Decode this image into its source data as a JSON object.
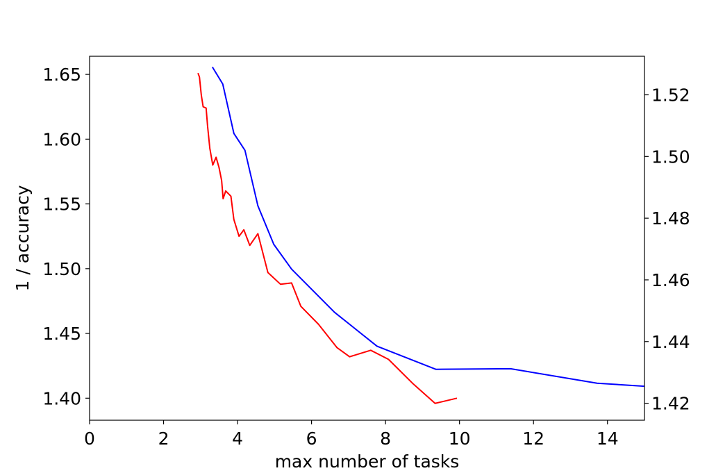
{
  "chart_data": {
    "type": "line",
    "title": "",
    "xlabel": "max number of tasks",
    "ylabel_left": "1 / accuracy",
    "ylabel_right": "",
    "xlim": [
      0,
      15
    ],
    "ylim_left": [
      1.383,
      1.664
    ],
    "ylim_right": [
      1.4145,
      1.5325
    ],
    "x_ticks": [
      0,
      2,
      4,
      6,
      8,
      10,
      12,
      14
    ],
    "y_ticks_left": [
      1.4,
      1.45,
      1.5,
      1.55,
      1.6,
      1.65
    ],
    "y_ticks_right": [
      1.42,
      1.44,
      1.46,
      1.48,
      1.5,
      1.52
    ],
    "grid": false,
    "series": [
      {
        "color": "#ff0000",
        "axis": "left",
        "x": [
          2.93,
          2.97,
          3.02,
          3.07,
          3.15,
          3.19,
          3.25,
          3.33,
          3.42,
          3.5,
          3.57,
          3.61,
          3.68,
          3.82,
          3.9,
          4.04,
          4.17,
          4.33,
          4.55,
          4.82,
          5.16,
          5.46,
          5.71,
          6.19,
          6.69,
          7.03,
          7.6,
          8.08,
          8.75,
          9.34,
          9.93
        ],
        "y": [
          1.651,
          1.648,
          1.634,
          1.625,
          1.624,
          1.61,
          1.593,
          1.58,
          1.586,
          1.578,
          1.568,
          1.554,
          1.56,
          1.556,
          1.538,
          1.525,
          1.53,
          1.518,
          1.527,
          1.497,
          1.488,
          1.489,
          1.471,
          1.457,
          1.439,
          1.432,
          1.437,
          1.43,
          1.411,
          1.396,
          1.4
        ]
      },
      {
        "color": "#0000ff",
        "axis": "right",
        "x": [
          3.32,
          3.6,
          3.9,
          4.2,
          4.55,
          4.98,
          5.46,
          6.62,
          7.77,
          9.36,
          11.38,
          13.72,
          15.0
        ],
        "y": [
          1.529,
          1.5235,
          1.5075,
          1.502,
          1.484,
          1.4715,
          1.4635,
          1.4495,
          1.4385,
          1.431,
          1.4312,
          1.4265,
          1.4255
        ]
      }
    ]
  }
}
